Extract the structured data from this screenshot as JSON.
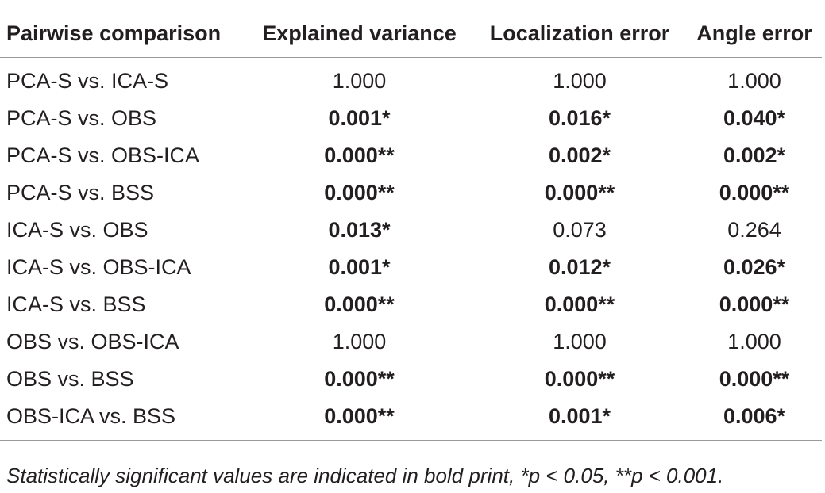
{
  "table": {
    "headers": [
      "Pairwise comparison",
      "Explained variance",
      "Localization error",
      "Angle error"
    ],
    "rows": [
      {
        "label": "PCA-S vs. ICA-S",
        "values": [
          {
            "text": "1.000",
            "bold": false
          },
          {
            "text": "1.000",
            "bold": false
          },
          {
            "text": "1.000",
            "bold": false
          }
        ]
      },
      {
        "label": "PCA-S vs. OBS",
        "values": [
          {
            "text": "0.001*",
            "bold": true
          },
          {
            "text": "0.016*",
            "bold": true
          },
          {
            "text": "0.040*",
            "bold": true
          }
        ]
      },
      {
        "label": "PCA-S vs. OBS-ICA",
        "values": [
          {
            "text": "0.000**",
            "bold": true
          },
          {
            "text": "0.002*",
            "bold": true
          },
          {
            "text": "0.002*",
            "bold": true
          }
        ]
      },
      {
        "label": "PCA-S vs. BSS",
        "values": [
          {
            "text": "0.000**",
            "bold": true
          },
          {
            "text": "0.000**",
            "bold": true
          },
          {
            "text": "0.000**",
            "bold": true
          }
        ]
      },
      {
        "label": "ICA-S vs. OBS",
        "values": [
          {
            "text": "0.013*",
            "bold": true
          },
          {
            "text": "0.073",
            "bold": false
          },
          {
            "text": "0.264",
            "bold": false
          }
        ]
      },
      {
        "label": "ICA-S vs. OBS-ICA",
        "values": [
          {
            "text": "0.001*",
            "bold": true
          },
          {
            "text": "0.012*",
            "bold": true
          },
          {
            "text": "0.026*",
            "bold": true
          }
        ]
      },
      {
        "label": "ICA-S vs. BSS",
        "values": [
          {
            "text": "0.000**",
            "bold": true
          },
          {
            "text": "0.000**",
            "bold": true
          },
          {
            "text": "0.000**",
            "bold": true
          }
        ]
      },
      {
        "label": "OBS vs. OBS-ICA",
        "values": [
          {
            "text": "1.000",
            "bold": false
          },
          {
            "text": "1.000",
            "bold": false
          },
          {
            "text": "1.000",
            "bold": false
          }
        ]
      },
      {
        "label": "OBS vs. BSS",
        "values": [
          {
            "text": "0.000**",
            "bold": true
          },
          {
            "text": "0.000**",
            "bold": true
          },
          {
            "text": "0.000**",
            "bold": true
          }
        ]
      },
      {
        "label": "OBS-ICA vs. BSS",
        "values": [
          {
            "text": "0.000**",
            "bold": true
          },
          {
            "text": "0.001*",
            "bold": true
          },
          {
            "text": "0.006*",
            "bold": true
          }
        ]
      }
    ]
  },
  "footnote": "Statistically significant values are indicated in bold print, *p < 0.05, **p < 0.001.",
  "colors": {
    "text": "#231f20",
    "rule": "#9a9a9a",
    "background": "#ffffff"
  }
}
